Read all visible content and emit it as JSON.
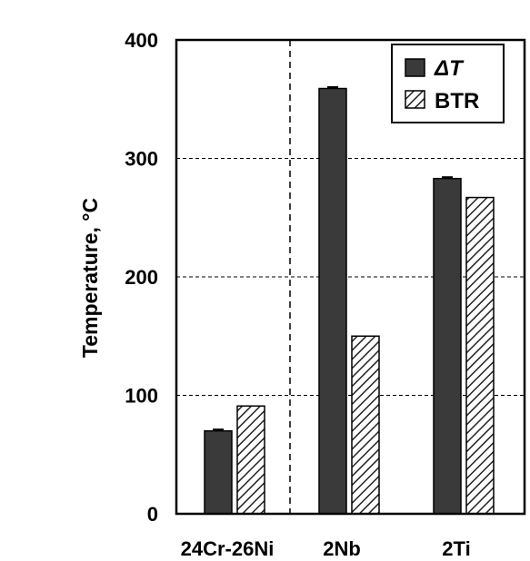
{
  "chart_data": {
    "type": "bar",
    "categories": [
      "24Cr-26Ni",
      "2Nb",
      "2Ti"
    ],
    "series": [
      {
        "name": "ΔT",
        "values": [
          70,
          359,
          283
        ],
        "color": "#3a3a3a",
        "pattern": "solid",
        "error_bars": true
      },
      {
        "name": "BTR",
        "values": [
          91,
          150,
          267
        ],
        "color": "#ffffff",
        "pattern": "diagonal-hatch",
        "error_bars": false
      }
    ],
    "ylabel": "Temperature, °C",
    "xlabel": "",
    "title": "",
    "ylim": [
      0,
      400
    ],
    "yticks": [
      "0",
      "100",
      "200",
      "300",
      "400"
    ],
    "grid": "horizontal-dashed",
    "separator_after_category": "24Cr-26Ni",
    "legend_position": "top-right"
  }
}
